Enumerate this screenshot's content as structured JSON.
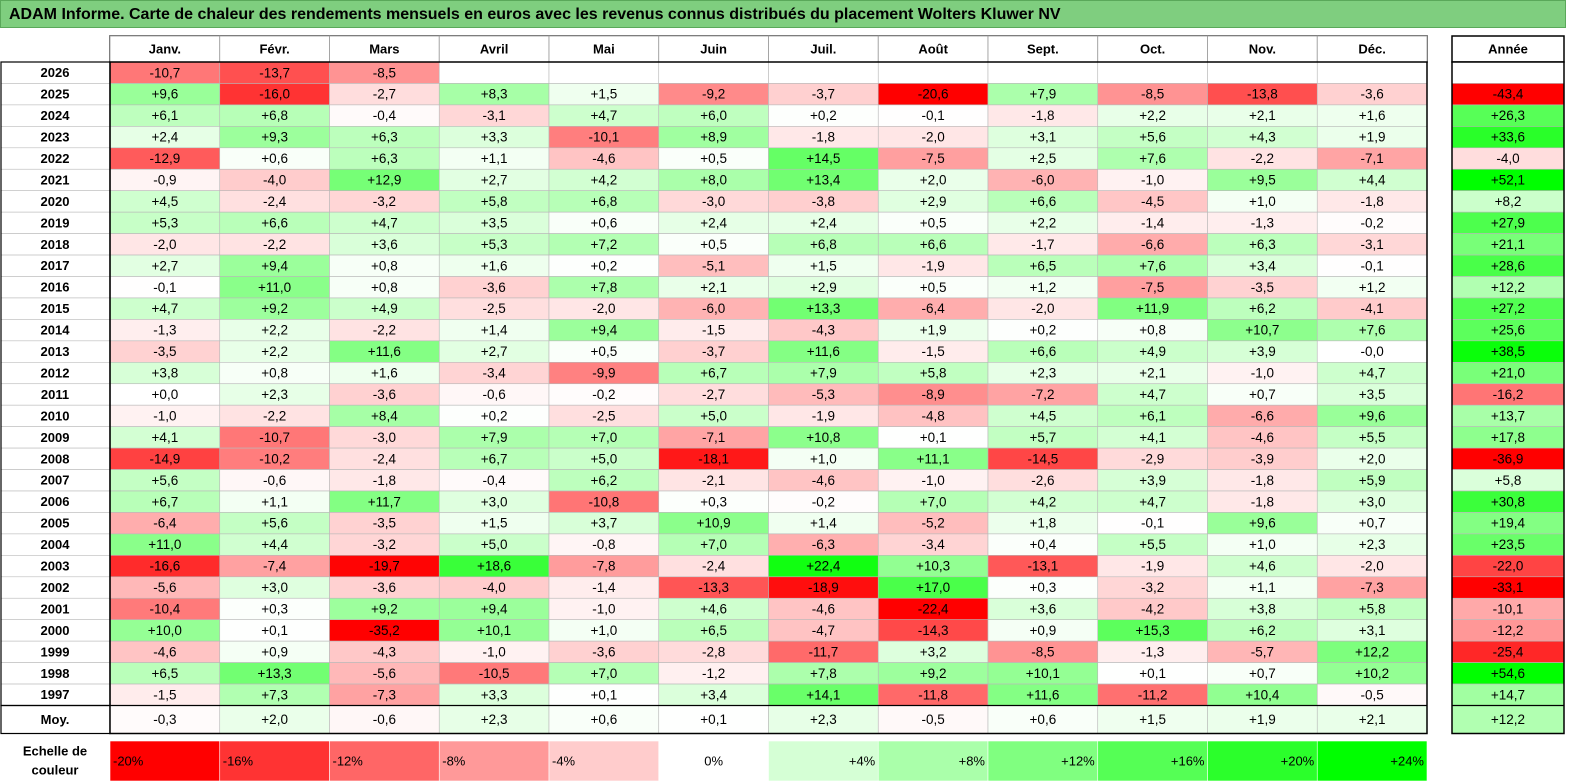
{
  "title": "ADAM Informe. Carte de chaleur des rendements mensuels en euros avec les revenus connus distribués du placement Wolters Kluwer NV",
  "chart_data": {
    "type": "heatmap",
    "title": "ADAM Informe. Carte de chaleur des rendements mensuels en euros avec les revenus connus distribués du placement Wolters Kluwer NV",
    "columns": [
      "Janv.",
      "Févr.",
      "Mars",
      "Avril",
      "Mai",
      "Juin",
      "Juil.",
      "Août",
      "Sept.",
      "Oct.",
      "Nov.",
      "Déc."
    ],
    "year_header": "Année",
    "rows": [
      {
        "label": "2026",
        "values": [
          "-10,7",
          "-13,7",
          "-8,5",
          "",
          "",
          "",
          "",
          "",
          "",
          "",
          "",
          ""
        ],
        "year": ""
      },
      {
        "label": "2025",
        "values": [
          "+9,6",
          "-16,0",
          "-2,7",
          "+8,3",
          "+1,5",
          "-9,2",
          "-3,7",
          "-20,6",
          "+7,9",
          "-8,5",
          "-13,8",
          "-3,6"
        ],
        "year": "-43,4"
      },
      {
        "label": "2024",
        "values": [
          "+6,1",
          "+6,8",
          "-0,4",
          "-3,1",
          "+4,7",
          "+6,0",
          "+0,2",
          "-0,1",
          "-1,8",
          "+2,2",
          "+2,1",
          "+1,6"
        ],
        "year": "+26,3"
      },
      {
        "label": "2023",
        "values": [
          "+2,4",
          "+9,3",
          "+6,3",
          "+3,3",
          "-10,1",
          "+8,9",
          "-1,8",
          "-2,0",
          "+3,1",
          "+5,6",
          "+4,3",
          "+1,9"
        ],
        "year": "+33,6"
      },
      {
        "label": "2022",
        "values": [
          "-12,9",
          "+0,6",
          "+6,3",
          "+1,1",
          "-4,6",
          "+0,5",
          "+14,5",
          "-7,5",
          "+2,5",
          "+7,6",
          "-2,2",
          "-7,1"
        ],
        "year": "-4,0"
      },
      {
        "label": "2021",
        "values": [
          "-0,9",
          "-4,0",
          "+12,9",
          "+2,7",
          "+4,2",
          "+8,0",
          "+13,4",
          "+2,0",
          "-6,0",
          "-1,0",
          "+9,5",
          "+4,4"
        ],
        "year": "+52,1"
      },
      {
        "label": "2020",
        "values": [
          "+4,5",
          "-2,4",
          "-3,2",
          "+5,8",
          "+6,8",
          "-3,0",
          "-3,8",
          "+2,9",
          "+6,6",
          "-4,5",
          "+1,0",
          "-1,8"
        ],
        "year": "+8,2"
      },
      {
        "label": "2019",
        "values": [
          "+5,3",
          "+6,6",
          "+4,7",
          "+3,5",
          "+0,6",
          "+2,4",
          "+2,4",
          "+0,5",
          "+2,2",
          "-1,4",
          "-1,3",
          "-0,2"
        ],
        "year": "+27,9"
      },
      {
        "label": "2018",
        "values": [
          "-2,0",
          "-2,2",
          "+3,6",
          "+5,3",
          "+7,2",
          "+0,5",
          "+6,8",
          "+6,6",
          "-1,7",
          "-6,6",
          "+6,3",
          "-3,1"
        ],
        "year": "+21,1"
      },
      {
        "label": "2017",
        "values": [
          "+2,7",
          "+9,4",
          "+0,8",
          "+1,6",
          "+0,2",
          "-5,1",
          "+1,5",
          "-1,9",
          "+6,5",
          "+7,6",
          "+3,4",
          "-0,1"
        ],
        "year": "+28,6"
      },
      {
        "label": "2016",
        "values": [
          "-0,1",
          "+11,0",
          "+0,8",
          "-3,6",
          "+7,8",
          "+2,1",
          "+2,9",
          "+0,5",
          "+1,2",
          "-7,5",
          "-3,5",
          "+1,2"
        ],
        "year": "+12,2"
      },
      {
        "label": "2015",
        "values": [
          "+4,7",
          "+9,2",
          "+4,9",
          "-2,5",
          "-2,0",
          "-6,0",
          "+13,3",
          "-6,4",
          "-2,0",
          "+11,9",
          "+6,2",
          "-4,1"
        ],
        "year": "+27,2"
      },
      {
        "label": "2014",
        "values": [
          "-1,3",
          "+2,2",
          "-2,2",
          "+1,4",
          "+9,4",
          "-1,5",
          "-4,3",
          "+1,9",
          "+0,2",
          "+0,8",
          "+10,7",
          "+7,6"
        ],
        "year": "+25,6"
      },
      {
        "label": "2013",
        "values": [
          "-3,5",
          "+2,2",
          "+11,6",
          "+2,7",
          "+0,5",
          "-3,7",
          "+11,6",
          "-1,5",
          "+6,6",
          "+4,9",
          "+3,9",
          "-0,0"
        ],
        "year": "+38,5"
      },
      {
        "label": "2012",
        "values": [
          "+3,8",
          "+0,8",
          "+1,6",
          "-3,4",
          "-9,9",
          "+6,7",
          "+7,9",
          "+5,8",
          "+2,3",
          "+2,1",
          "-1,0",
          "+4,7"
        ],
        "year": "+21,0"
      },
      {
        "label": "2011",
        "values": [
          "+0,0",
          "+2,3",
          "-3,6",
          "-0,6",
          "-0,2",
          "-2,7",
          "-5,3",
          "-8,9",
          "-7,2",
          "+4,7",
          "+0,7",
          "+3,5"
        ],
        "year": "-16,2"
      },
      {
        "label": "2010",
        "values": [
          "-1,0",
          "-2,2",
          "+8,4",
          "+0,2",
          "-2,5",
          "+5,0",
          "-1,9",
          "-4,8",
          "+4,5",
          "+6,1",
          "-6,6",
          "+9,6"
        ],
        "year": "+13,7"
      },
      {
        "label": "2009",
        "values": [
          "+4,1",
          "-10,7",
          "-3,0",
          "+7,9",
          "+7,0",
          "-7,1",
          "+10,8",
          "+0,1",
          "+5,7",
          "+4,1",
          "-4,6",
          "+5,5"
        ],
        "year": "+17,8"
      },
      {
        "label": "2008",
        "values": [
          "-14,9",
          "-10,2",
          "-2,4",
          "+6,7",
          "+5,0",
          "-18,1",
          "+1,0",
          "+11,1",
          "-14,5",
          "-2,9",
          "-3,9",
          "+2,0"
        ],
        "year": "-36,9"
      },
      {
        "label": "2007",
        "values": [
          "+5,6",
          "-0,6",
          "-1,8",
          "-0,4",
          "+6,2",
          "-2,1",
          "-4,6",
          "-1,0",
          "-2,6",
          "+3,9",
          "-1,8",
          "+5,9"
        ],
        "year": "+5,8"
      },
      {
        "label": "2006",
        "values": [
          "+6,7",
          "+1,1",
          "+11,7",
          "+3,0",
          "-10,8",
          "+0,3",
          "-0,2",
          "+7,0",
          "+4,2",
          "+4,7",
          "-1,8",
          "+3,0"
        ],
        "year": "+30,8"
      },
      {
        "label": "2005",
        "values": [
          "-6,4",
          "+5,6",
          "-3,5",
          "+1,5",
          "+3,7",
          "+10,9",
          "+1,4",
          "-5,2",
          "+1,8",
          "-0,1",
          "+9,6",
          "+0,7"
        ],
        "year": "+19,4"
      },
      {
        "label": "2004",
        "values": [
          "+11,0",
          "+4,4",
          "-3,2",
          "+5,0",
          "-0,8",
          "+7,0",
          "-6,3",
          "-3,4",
          "+0,4",
          "+5,5",
          "+1,0",
          "+2,3"
        ],
        "year": "+23,5"
      },
      {
        "label": "2003",
        "values": [
          "-16,6",
          "-7,4",
          "-19,7",
          "+18,6",
          "-7,8",
          "-2,4",
          "+22,4",
          "+10,3",
          "-13,1",
          "-1,9",
          "+4,6",
          "-2,0"
        ],
        "year": "-22,0"
      },
      {
        "label": "2002",
        "values": [
          "-5,6",
          "+3,0",
          "-3,6",
          "-4,0",
          "-1,4",
          "-13,3",
          "-18,9",
          "+17,0",
          "+0,3",
          "-3,2",
          "+1,1",
          "-7,3"
        ],
        "year": "-33,1"
      },
      {
        "label": "2001",
        "values": [
          "-10,4",
          "+0,3",
          "+9,2",
          "+9,4",
          "-1,0",
          "+4,6",
          "-4,6",
          "-22,4",
          "+3,6",
          "-4,2",
          "+3,8",
          "+5,8"
        ],
        "year": "-10,1"
      },
      {
        "label": "2000",
        "values": [
          "+10,0",
          "+0,1",
          "-35,2",
          "+10,1",
          "+1,0",
          "+6,5",
          "-4,7",
          "-14,3",
          "+0,9",
          "+15,3",
          "+6,2",
          "+3,1"
        ],
        "year": "-12,2"
      },
      {
        "label": "1999",
        "values": [
          "-4,6",
          "+0,9",
          "-4,3",
          "-1,0",
          "-3,6",
          "-2,8",
          "-11,7",
          "+3,2",
          "-8,5",
          "-1,3",
          "-5,7",
          "+12,2"
        ],
        "year": "-25,4"
      },
      {
        "label": "1998",
        "values": [
          "+6,5",
          "+13,3",
          "-5,6",
          "-10,5",
          "+7,0",
          "-1,2",
          "+7,8",
          "+9,2",
          "+10,1",
          "+0,1",
          "+0,7",
          "+10,2"
        ],
        "year": "+54,6"
      },
      {
        "label": "1997",
        "values": [
          "-1,5",
          "+7,3",
          "-7,3",
          "+3,3",
          "+0,1",
          "+3,4",
          "+14,1",
          "-11,8",
          "+11,6",
          "-11,2",
          "+10,4",
          "-0,5"
        ],
        "year": "+14,7"
      }
    ],
    "average": {
      "label": "Moy.",
      "values": [
        "-0,3",
        "+2,0",
        "-0,6",
        "+2,3",
        "+0,6",
        "+0,1",
        "+2,3",
        "-0,5",
        "+0,6",
        "+1,5",
        "+1,9",
        "+2,1"
      ],
      "year": "+12,2"
    },
    "scale": {
      "label_line1": "Echelle de",
      "label_line2": "couleur",
      "stops": [
        "-20%",
        "-16%",
        "-12%",
        "-8%",
        "-4%",
        "0%",
        "+4%",
        "+8%",
        "+12%",
        "+16%",
        "+20%",
        "+24%"
      ]
    },
    "colors": {
      "negative": "#ff0000",
      "neutral": "#ffffff",
      "positive": "#00ff00",
      "title_bg": "#7fce7f"
    }
  }
}
